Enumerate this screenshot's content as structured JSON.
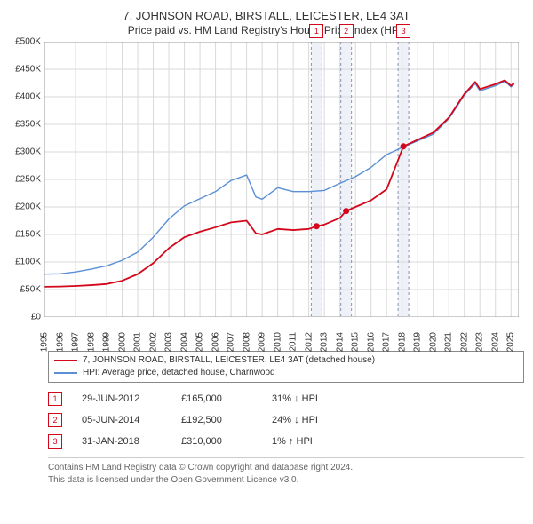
{
  "title_main": "7, JOHNSON ROAD, BIRSTALL, LEICESTER, LE4 3AT",
  "title_sub": "Price paid vs. HM Land Registry's House Price Index (HPI)",
  "chart": {
    "type": "line",
    "x_start": 1995,
    "x_end": 2025.5,
    "y_min": 0,
    "y_max": 500000,
    "ytick_step": 50000,
    "ytick_prefix": "£",
    "ytick_suffix": "K",
    "xticks": [
      1995,
      1996,
      1997,
      1998,
      1999,
      2000,
      2001,
      2002,
      2003,
      2004,
      2005,
      2006,
      2007,
      2008,
      2009,
      2010,
      2011,
      2012,
      2013,
      2014,
      2015,
      2016,
      2017,
      2018,
      2019,
      2020,
      2021,
      2022,
      2023,
      2024,
      2025
    ],
    "grid_color": "#d9d9d9",
    "marker_band_color": "#eef1f7",
    "colors": {
      "red": "#d4071a",
      "blue": "#5a8fd6"
    },
    "series": {
      "red": [
        [
          1995,
          55000
        ],
        [
          1996,
          55500
        ],
        [
          1997,
          56500
        ],
        [
          1998,
          58000
        ],
        [
          1999,
          60000
        ],
        [
          2000,
          66000
        ],
        [
          2001,
          78000
        ],
        [
          2002,
          98000
        ],
        [
          2003,
          125000
        ],
        [
          2004,
          145000
        ],
        [
          2005,
          155000
        ],
        [
          2006,
          163000
        ],
        [
          2007,
          172000
        ],
        [
          2008,
          175000
        ],
        [
          2008.6,
          152000
        ],
        [
          2009,
          150000
        ],
        [
          2010,
          160000
        ],
        [
          2011,
          158000
        ],
        [
          2012,
          160000
        ],
        [
          2012.5,
          165000
        ],
        [
          2013,
          168000
        ],
        [
          2014,
          180000
        ],
        [
          2014.4,
          192500
        ],
        [
          2015,
          200000
        ],
        [
          2016,
          212000
        ],
        [
          2017,
          232000
        ],
        [
          2018.08,
          310000
        ],
        [
          2019,
          322000
        ],
        [
          2020,
          335000
        ],
        [
          2021,
          362000
        ],
        [
          2022,
          405000
        ],
        [
          2022.7,
          427000
        ],
        [
          2023,
          414000
        ],
        [
          2024,
          423000
        ],
        [
          2024.6,
          430000
        ],
        [
          2025,
          420000
        ],
        [
          2025.2,
          425000
        ]
      ],
      "blue": [
        [
          1995,
          78000
        ],
        [
          1996,
          78500
        ],
        [
          1997,
          82000
        ],
        [
          1998,
          87000
        ],
        [
          1999,
          93000
        ],
        [
          2000,
          103000
        ],
        [
          2001,
          118000
        ],
        [
          2002,
          145000
        ],
        [
          2003,
          178000
        ],
        [
          2004,
          202000
        ],
        [
          2005,
          215000
        ],
        [
          2006,
          228000
        ],
        [
          2007,
          248000
        ],
        [
          2008,
          258000
        ],
        [
          2008.6,
          218000
        ],
        [
          2009,
          214000
        ],
        [
          2010,
          235000
        ],
        [
          2011,
          228000
        ],
        [
          2012,
          228000
        ],
        [
          2013,
          230000
        ],
        [
          2014,
          243000
        ],
        [
          2015,
          255000
        ],
        [
          2016,
          272000
        ],
        [
          2017,
          295000
        ],
        [
          2018,
          308000
        ],
        [
          2019,
          320000
        ],
        [
          2020,
          332000
        ],
        [
          2021,
          360000
        ],
        [
          2022,
          403000
        ],
        [
          2022.7,
          424000
        ],
        [
          2023,
          411000
        ],
        [
          2024,
          420000
        ],
        [
          2024.6,
          428000
        ],
        [
          2025,
          418000
        ],
        [
          2025.2,
          423000
        ]
      ]
    },
    "sale_points": [
      {
        "x": 2012.5,
        "y": 165000
      },
      {
        "x": 2014.4,
        "y": 192500
      },
      {
        "x": 2018.08,
        "y": 310000
      }
    ],
    "marker_bands": [
      2012.5,
      2014.4,
      2018.08
    ],
    "markers": [
      {
        "n": "1",
        "x": 2012.5
      },
      {
        "n": "2",
        "x": 2014.4
      },
      {
        "n": "3",
        "x": 2018.08
      }
    ]
  },
  "legend": {
    "row1": {
      "color": "#d4071a",
      "label": "7, JOHNSON ROAD, BIRSTALL, LEICESTER, LE4 3AT (detached house)"
    },
    "row2": {
      "color": "#5a8fd6",
      "label": "HPI: Average price, detached house, Charnwood"
    }
  },
  "sales": [
    {
      "n": "1",
      "date": "29-JUN-2012",
      "price": "£165,000",
      "pct": "31% ↓ HPI",
      "color": "#d4071a"
    },
    {
      "n": "2",
      "date": "05-JUN-2014",
      "price": "£192,500",
      "pct": "24% ↓ HPI",
      "color": "#d4071a"
    },
    {
      "n": "3",
      "date": "31-JAN-2018",
      "price": "£310,000",
      "pct": "1% ↑ HPI",
      "color": "#d4071a"
    }
  ],
  "footer": {
    "line1": "Contains HM Land Registry data © Crown copyright and database right 2024.",
    "line2": "This data is licensed under the Open Government Licence v3.0."
  }
}
